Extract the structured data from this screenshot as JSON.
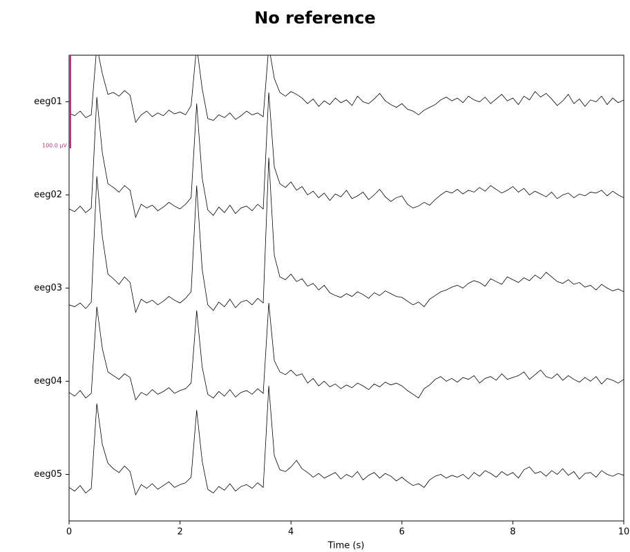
{
  "chart_data": {
    "type": "eeg",
    "title": "No reference",
    "xlabel": "Time (s)",
    "xlim": [
      0,
      10
    ],
    "xticks": [
      0,
      2,
      4,
      6,
      8,
      10
    ],
    "scale_bar": {
      "value": 100,
      "label": "100.0 µV",
      "color": "#b03a7e"
    },
    "x": [
      0,
      0.1,
      0.2,
      0.3,
      0.4,
      0.5,
      0.6,
      0.7,
      0.8,
      0.9,
      1,
      1.1,
      1.2,
      1.3,
      1.4,
      1.5,
      1.6,
      1.7,
      1.8,
      1.9,
      2,
      2.1,
      2.2,
      2.3,
      2.4,
      2.5,
      2.6,
      2.7,
      2.8,
      2.9,
      3,
      3.1,
      3.2,
      3.3,
      3.4,
      3.5,
      3.6,
      3.7,
      3.8,
      3.9,
      4,
      4.1,
      4.2,
      4.3,
      4.4,
      4.5,
      4.6,
      4.7,
      4.8,
      4.9,
      5,
      5.1,
      5.2,
      5.3,
      5.4,
      5.5,
      5.6,
      5.7,
      5.8,
      5.9,
      6,
      6.1,
      6.2,
      6.3,
      6.4,
      6.5,
      6.6,
      6.7,
      6.8,
      6.9,
      7,
      7.1,
      7.2,
      7.3,
      7.4,
      7.5,
      7.6,
      7.7,
      7.8,
      7.9,
      8,
      8.1,
      8.2,
      8.3,
      8.4,
      8.5,
      8.6,
      8.7,
      8.8,
      8.9,
      9,
      9.1,
      9.2,
      9.3,
      9.4,
      9.5,
      9.6,
      9.7,
      9.8,
      9.9,
      10
    ],
    "series": [
      {
        "name": "eeg01",
        "color": "#000000",
        "values": [
          -12,
          -15,
          -10,
          -17,
          -14,
          60,
          30,
          8,
          10,
          6,
          12,
          7,
          -22,
          -14,
          -10,
          -16,
          -12,
          -15,
          -9,
          -13,
          -11,
          -14,
          -4,
          60,
          14,
          -18,
          -20,
          -14,
          -17,
          -12,
          -19,
          -15,
          -10,
          -14,
          -12,
          -16,
          60,
          25,
          10,
          6,
          11,
          8,
          4,
          -2,
          3,
          -5,
          1,
          -3,
          4,
          -1,
          2,
          -4,
          6,
          0,
          -2,
          3,
          9,
          1,
          -3,
          -6,
          -2,
          -8,
          -10,
          -14,
          -9,
          -6,
          -3,
          2,
          5,
          1,
          4,
          -1,
          6,
          2,
          0,
          5,
          -2,
          3,
          8,
          1,
          4,
          -3,
          6,
          2,
          11,
          5,
          9,
          3,
          -4,
          1,
          8,
          -2,
          3,
          -5,
          2,
          0,
          6,
          -3,
          4,
          -1,
          2
        ]
      },
      {
        "name": "eeg02",
        "color": "#000000",
        "values": [
          -15,
          -18,
          -12,
          -19,
          -14,
          105,
          45,
          12,
          8,
          3,
          10,
          5,
          -24,
          -10,
          -14,
          -11,
          -17,
          -13,
          -8,
          -12,
          -15,
          -10,
          -3,
          98,
          18,
          -16,
          -22,
          -13,
          -19,
          -11,
          -20,
          -14,
          -12,
          -17,
          -10,
          -15,
          110,
          30,
          12,
          8,
          14,
          5,
          9,
          0,
          4,
          -3,
          2,
          -6,
          1,
          -2,
          5,
          -4,
          -1,
          3,
          -5,
          0,
          6,
          -2,
          -7,
          -3,
          -1,
          -10,
          -14,
          -12,
          -8,
          -11,
          -5,
          0,
          4,
          2,
          6,
          1,
          5,
          3,
          8,
          4,
          10,
          6,
          2,
          5,
          9,
          3,
          7,
          0,
          4,
          1,
          -2,
          3,
          -4,
          0,
          2,
          -3,
          1,
          -1,
          3,
          2,
          5,
          -1,
          4,
          0,
          -3
        ]
      },
      {
        "name": "eeg03",
        "color": "#000000",
        "values": [
          -18,
          -20,
          -16,
          -22,
          -15,
          120,
          55,
          15,
          10,
          4,
          12,
          6,
          -26,
          -12,
          -16,
          -13,
          -18,
          -14,
          -9,
          -13,
          -16,
          -11,
          -4,
          110,
          20,
          -18,
          -24,
          -15,
          -20,
          -12,
          -21,
          -15,
          -13,
          -18,
          -11,
          -16,
          140,
          35,
          12,
          9,
          15,
          7,
          10,
          2,
          5,
          -2,
          3,
          -5,
          -8,
          -10,
          -6,
          -9,
          -4,
          -7,
          -11,
          -5,
          -8,
          -3,
          -6,
          -9,
          -10,
          -14,
          -18,
          -15,
          -20,
          -12,
          -8,
          -4,
          -2,
          1,
          3,
          0,
          5,
          8,
          6,
          2,
          10,
          7,
          4,
          12,
          9,
          6,
          11,
          8,
          14,
          10,
          17,
          12,
          7,
          5,
          9,
          4,
          6,
          1,
          3,
          -2,
          4,
          0,
          -3,
          -1,
          -4
        ]
      },
      {
        "name": "eeg04",
        "color": "#000000",
        "values": [
          -12,
          -16,
          -10,
          -18,
          -13,
          80,
          35,
          10,
          6,
          2,
          8,
          4,
          -20,
          -12,
          -15,
          -9,
          -14,
          -11,
          -7,
          -13,
          -10,
          -8,
          -2,
          76,
          15,
          -14,
          -18,
          -11,
          -16,
          -9,
          -17,
          -12,
          -10,
          -14,
          -8,
          -13,
          84,
          22,
          10,
          7,
          12,
          6,
          8,
          -2,
          3,
          -5,
          0,
          -6,
          -3,
          -8,
          -4,
          -7,
          -2,
          -5,
          -9,
          -3,
          -6,
          -1,
          -4,
          -2,
          -5,
          -10,
          -14,
          -18,
          -8,
          -4,
          2,
          5,
          0,
          3,
          -1,
          4,
          2,
          6,
          -2,
          3,
          5,
          1,
          8,
          2,
          4,
          6,
          10,
          2,
          7,
          12,
          5,
          3,
          8,
          1,
          6,
          2,
          -1,
          4,
          0,
          5,
          -3,
          3,
          1,
          -2,
          2
        ]
      },
      {
        "name": "eeg05",
        "color": "#000000",
        "values": [
          -14,
          -18,
          -12,
          -20,
          -15,
          76,
          32,
          12,
          6,
          2,
          9,
          3,
          -22,
          -11,
          -15,
          -10,
          -16,
          -12,
          -8,
          -14,
          -11,
          -9,
          -3,
          69,
          14,
          -16,
          -20,
          -13,
          -17,
          -10,
          -18,
          -13,
          -11,
          -15,
          -9,
          -14,
          95,
          20,
          5,
          3,
          8,
          15,
          6,
          2,
          -3,
          1,
          -4,
          -1,
          2,
          -5,
          0,
          -3,
          3,
          -6,
          -1,
          2,
          -4,
          1,
          -2,
          -7,
          -3,
          -8,
          -12,
          -10,
          -14,
          -6,
          -2,
          0,
          -4,
          -1,
          -3,
          0,
          -5,
          2,
          -2,
          4,
          1,
          -3,
          3,
          -1,
          2,
          -4,
          5,
          8,
          1,
          3,
          -2,
          4,
          0,
          6,
          -1,
          3,
          -5,
          1,
          2,
          -3,
          4,
          0,
          -2,
          1,
          -1
        ]
      }
    ]
  }
}
